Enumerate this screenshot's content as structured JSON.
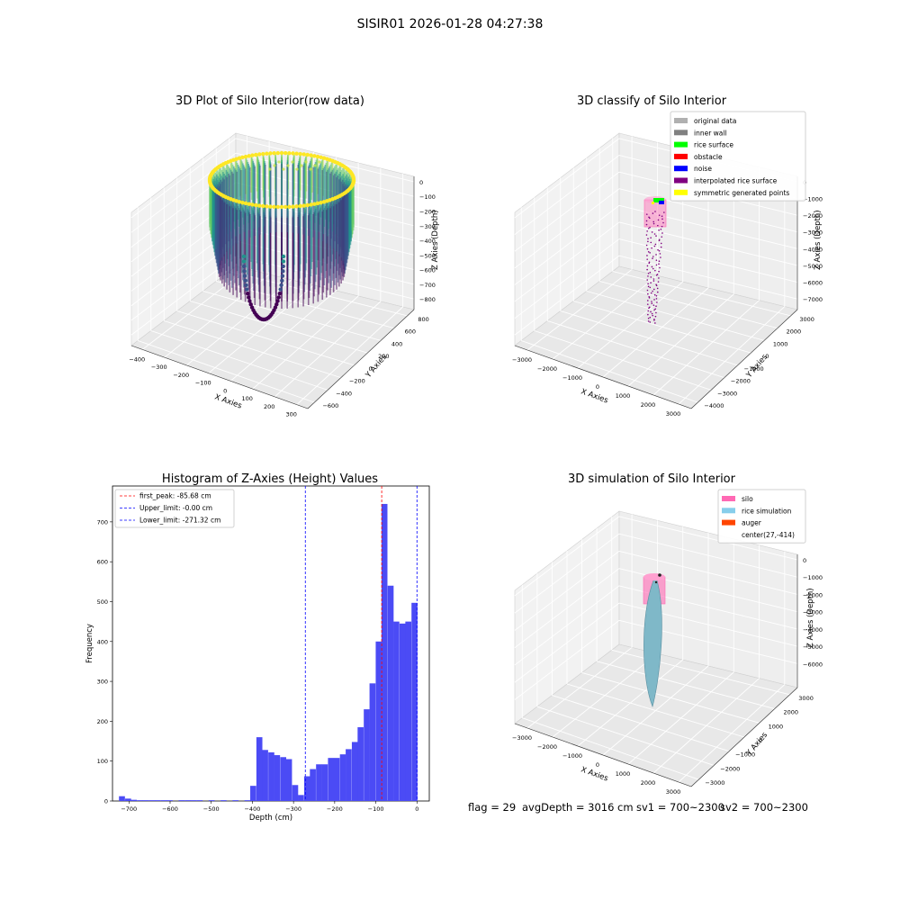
{
  "figure": {
    "suptitle": "SISIR01 2026-01-28 04:27:38",
    "footer": {
      "flag": "flag = 29",
      "avg_depth": "avgDepth = 3016 cm",
      "sv1": "sv1 = 700~2300",
      "sv2": "sv2 = 700~2300"
    }
  },
  "chart_data": [
    {
      "type": "scatter",
      "projection": "3d",
      "title": "3D Plot of Silo Interior(row data)",
      "xlabel": "X Axies",
      "ylabel": "Y Axies",
      "zlabel": "Z Axies (Depth)",
      "x_ticks": [
        "−400",
        "−300",
        "−200",
        "−100",
        "0",
        "100",
        "200",
        "300"
      ],
      "y_ticks": [
        "−600",
        "−400",
        "−200",
        "0",
        "200",
        "400",
        "600",
        "800"
      ],
      "z_ticks": [
        "0",
        "−100",
        "−200",
        "−300",
        "−400",
        "−500",
        "−600",
        "−700",
        "−800"
      ],
      "xlim": [
        -420,
        300
      ],
      "ylim": [
        -700,
        850
      ],
      "zlim": [
        -850,
        30
      ],
      "colormap": "viridis",
      "grid": true
    },
    {
      "type": "scatter",
      "projection": "3d",
      "title": "3D classify of Silo Interior",
      "xlabel": "X Axies",
      "ylabel": "Y Axies",
      "zlabel": "Z Axies (Depth)",
      "x_ticks": [
        "−3000",
        "−2000",
        "−1000",
        "0",
        "1000",
        "2000",
        "3000"
      ],
      "y_ticks": [
        "−4000",
        "−3000",
        "−2000",
        "−1000",
        "0",
        "1000",
        "2000",
        "3000"
      ],
      "z_ticks": [
        "0",
        "−1000",
        "−2000",
        "−3000",
        "−4000",
        "−5000",
        "−6000",
        "−7000"
      ],
      "legend_position": "top-right",
      "legend": [
        {
          "label": "original data",
          "color": "#b0b0b0"
        },
        {
          "label": "inner wall",
          "color": "#808080"
        },
        {
          "label": "rice surface",
          "color": "#00ff00"
        },
        {
          "label": "obstacle",
          "color": "#ff0000"
        },
        {
          "label": "noise",
          "color": "#0000ff"
        },
        {
          "label": "interpolated rice surface",
          "color": "#800080"
        },
        {
          "label": "symmetric generated points",
          "color": "#ffff00"
        }
      ],
      "grid": true
    },
    {
      "type": "bar",
      "title": "Histogram of Z-Axies (Height) Values",
      "xlabel": "Depth (cm)",
      "ylabel": "Frequency",
      "xlim": [
        -740,
        30
      ],
      "ylim": [
        0,
        790
      ],
      "x_ticks": [
        -700,
        -600,
        -500,
        -400,
        -300,
        -200,
        -100,
        0
      ],
      "x_tick_labels": [
        "−700",
        "−600",
        "−500",
        "−400",
        "−300",
        "−200",
        "−100",
        "0"
      ],
      "y_ticks": [
        0,
        100,
        200,
        300,
        400,
        500,
        600,
        700
      ],
      "bar_color": "#4b4bf5",
      "bin_width": 14.5,
      "bins": [
        {
          "x": -717,
          "value": 12
        },
        {
          "x": -702,
          "value": 6
        },
        {
          "x": -688,
          "value": 3
        },
        {
          "x": -673,
          "value": 2
        },
        {
          "x": -659,
          "value": 2
        },
        {
          "x": -644,
          "value": 2
        },
        {
          "x": -630,
          "value": 2
        },
        {
          "x": -615,
          "value": 2
        },
        {
          "x": -601,
          "value": 2
        },
        {
          "x": -572,
          "value": 2
        },
        {
          "x": -557,
          "value": 2
        },
        {
          "x": -543,
          "value": 2
        },
        {
          "x": -528,
          "value": 2
        },
        {
          "x": -499,
          "value": 2
        },
        {
          "x": -470,
          "value": 2
        },
        {
          "x": -441,
          "value": 2
        },
        {
          "x": -412,
          "value": 2
        },
        {
          "x": -398,
          "value": 38
        },
        {
          "x": -383,
          "value": 160
        },
        {
          "x": -369,
          "value": 128
        },
        {
          "x": -354,
          "value": 122
        },
        {
          "x": -340,
          "value": 115
        },
        {
          "x": -325,
          "value": 110
        },
        {
          "x": -311,
          "value": 105
        },
        {
          "x": -296,
          "value": 40
        },
        {
          "x": -282,
          "value": 15
        },
        {
          "x": -267,
          "value": 62
        },
        {
          "x": -253,
          "value": 80
        },
        {
          "x": -238,
          "value": 92
        },
        {
          "x": -224,
          "value": 92
        },
        {
          "x": -209,
          "value": 108
        },
        {
          "x": -195,
          "value": 108
        },
        {
          "x": -180,
          "value": 117
        },
        {
          "x": -166,
          "value": 130
        },
        {
          "x": -151,
          "value": 148
        },
        {
          "x": -137,
          "value": 185
        },
        {
          "x": -122,
          "value": 230
        },
        {
          "x": -108,
          "value": 295
        },
        {
          "x": -93,
          "value": 400
        },
        {
          "x": -79,
          "value": 745
        },
        {
          "x": -64,
          "value": 540
        },
        {
          "x": -50,
          "value": 450
        },
        {
          "x": -35,
          "value": 445
        },
        {
          "x": -21,
          "value": 450
        },
        {
          "x": -6,
          "value": 497
        }
      ],
      "vlines": [
        {
          "label": "first_peak: -85.68 cm",
          "x": -85.68,
          "color": "#ff0000"
        },
        {
          "label": "Upper_limit: -0.00 cm",
          "x": 0,
          "color": "#0000ff"
        },
        {
          "label": "Lower_limit: -271.32 cm",
          "x": -271.32,
          "color": "#0000ff"
        }
      ],
      "legend_position": "top-left"
    },
    {
      "type": "surface",
      "projection": "3d",
      "title": "3D simulation of Silo Interior",
      "xlabel": "X Axies",
      "ylabel": "Y Axies",
      "zlabel": "Z Axies (Depth)",
      "x_ticks": [
        "−3000",
        "−2000",
        "−1000",
        "0",
        "1000",
        "2000",
        "3000"
      ],
      "y_ticks": [
        "−3000",
        "−2000",
        "−1000",
        "0",
        "1000",
        "2000",
        "3000"
      ],
      "z_ticks": [
        "0",
        "−1000",
        "−2000",
        "−3000",
        "−4000",
        "−5000",
        "−6000"
      ],
      "legend_position": "top-right",
      "legend": [
        {
          "label": "silo",
          "color": "#ff69b4"
        },
        {
          "label": "rice simulation",
          "color": "#87ceeb"
        },
        {
          "label": "auger",
          "color": "#ff4500"
        },
        {
          "label": "center(27,-414)",
          "color": ""
        }
      ],
      "grid": true
    }
  ]
}
